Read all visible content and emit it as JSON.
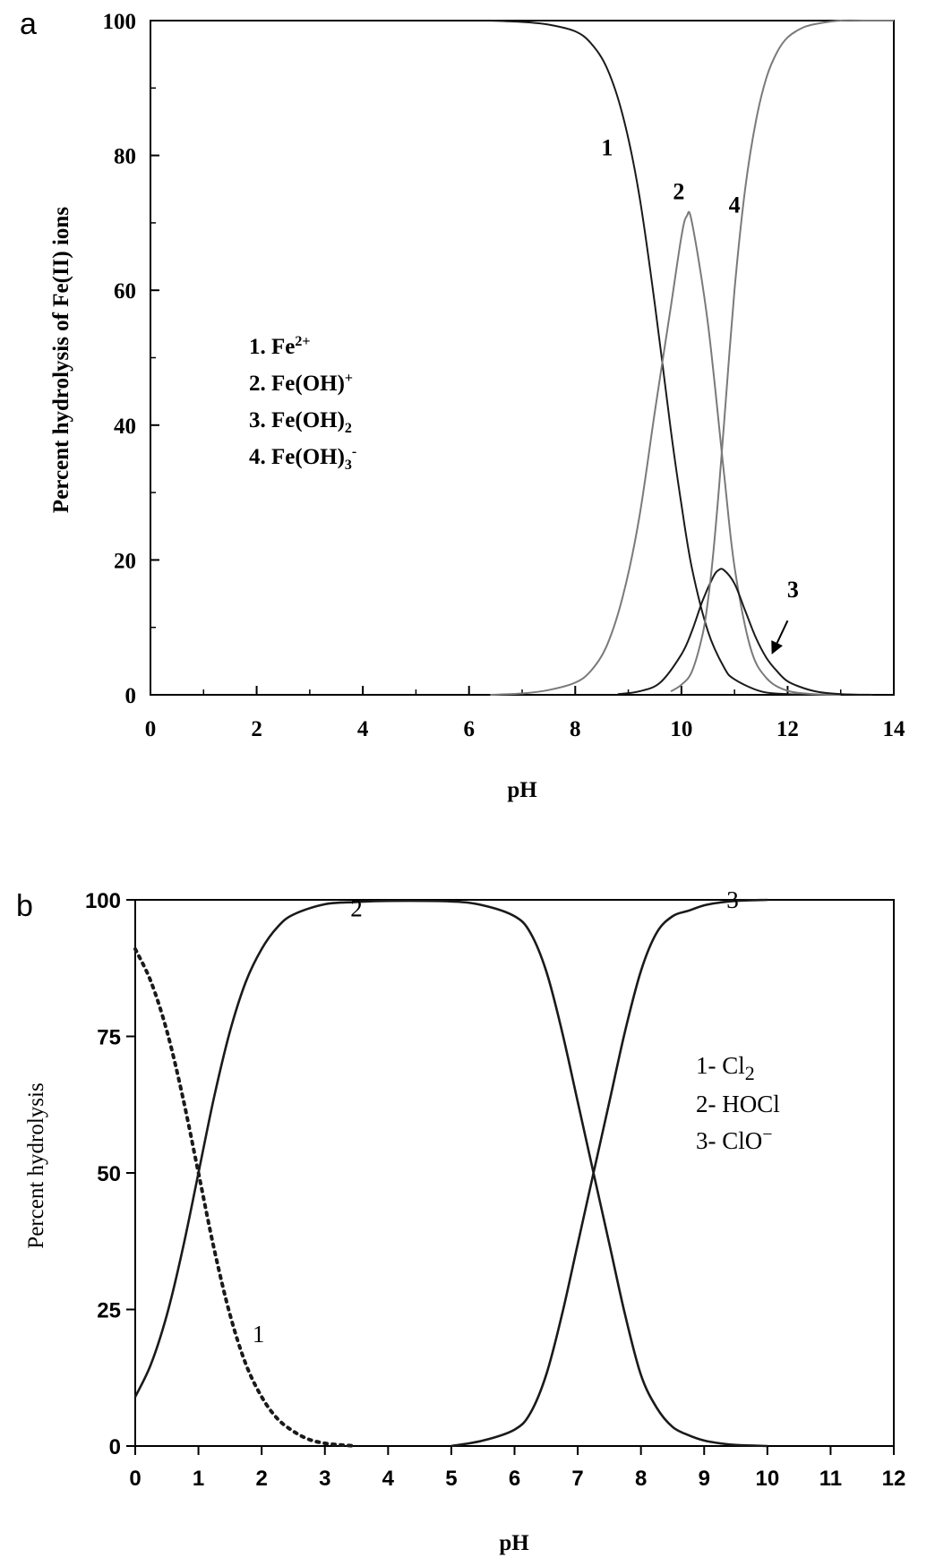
{
  "chart_data": [
    {
      "panel_label": "a",
      "type": "line",
      "xlabel": "pH",
      "ylabel": "Percent hydrolysis of Fe(II) ions",
      "xlim": [
        0,
        14
      ],
      "ylim": [
        0,
        100
      ],
      "xticks": [
        "0",
        "2",
        "4",
        "6",
        "8",
        "10",
        "12",
        "14"
      ],
      "yticks": [
        "0",
        "20",
        "40",
        "60",
        "80",
        "100"
      ],
      "grid": false,
      "legend_position": "center-left",
      "legend": [
        {
          "num": "1. ",
          "base": "Fe",
          "sub": "",
          "sup": "2+"
        },
        {
          "num": "2. ",
          "base": "Fe(OH)",
          "sub": "",
          "sup": "+"
        },
        {
          "num": "3. ",
          "base": "Fe(OH)",
          "sub": "2",
          "sup": ""
        },
        {
          "num": "4. ",
          "base": "Fe(OH)",
          "sub": "3",
          "sup": "-"
        }
      ],
      "series": [
        {
          "name": "1",
          "color": "#1a1a1a",
          "x": [
            6.4,
            7.0,
            7.5,
            8.0,
            8.3,
            8.6,
            8.9,
            9.2,
            9.5,
            9.8,
            10.0,
            10.2,
            10.5,
            10.8,
            11.0,
            11.5,
            12.0,
            12.5,
            13.0
          ],
          "y": [
            100,
            99.8,
            99.4,
            98.4,
            96.6,
            92.9,
            85.8,
            74.4,
            57.9,
            39.3,
            28.2,
            18.7,
            9.4,
            4.1,
            2.3,
            0.5,
            0.1,
            0.0,
            0.0
          ]
        },
        {
          "name": "2",
          "color": "#7a7a7a",
          "x": [
            6.4,
            7.0,
            7.5,
            8.0,
            8.3,
            8.6,
            8.9,
            9.2,
            9.5,
            9.8,
            10.0,
            10.1,
            10.2,
            10.5,
            10.8,
            11.0,
            11.3,
            11.6,
            12.0,
            12.5,
            13.0
          ],
          "y": [
            0.0,
            0.2,
            0.7,
            1.8,
            3.6,
            7.4,
            14.7,
            26.0,
            42.0,
            57.5,
            68.0,
            71.0,
            70.0,
            55.0,
            33.0,
            19.0,
            7.0,
            2.5,
            0.6,
            0.1,
            0.0
          ]
        },
        {
          "name": "3",
          "color": "#1a1a1a",
          "x": [
            8.8,
            9.2,
            9.6,
            10.0,
            10.2,
            10.4,
            10.6,
            10.7,
            10.8,
            11.0,
            11.2,
            11.4,
            11.6,
            11.8,
            12.0,
            12.3,
            12.6,
            13.0,
            13.6
          ],
          "y": [
            0.1,
            0.5,
            1.8,
            6.0,
            9.5,
            14.0,
            17.5,
            18.5,
            18.5,
            16.5,
            12.5,
            8.5,
            5.5,
            3.5,
            2.0,
            1.0,
            0.4,
            0.1,
            0.0
          ]
        },
        {
          "name": "4",
          "color": "#7a7a7a",
          "x": [
            9.8,
            10.0,
            10.2,
            10.4,
            10.5,
            10.6,
            10.7,
            10.8,
            11.0,
            11.2,
            11.4,
            11.6,
            11.8,
            12.0,
            12.3,
            12.6,
            13.0,
            13.5,
            14.0
          ],
          "y": [
            0.5,
            1.5,
            3.5,
            9.0,
            14.0,
            21.0,
            30.0,
            40.0,
            60.0,
            75.0,
            85.0,
            91.5,
            95.3,
            97.5,
            99.0,
            99.6,
            100,
            100,
            100
          ]
        }
      ],
      "curve_labels": [
        {
          "text": "1",
          "x": 8.6,
          "y": 80
        },
        {
          "text": "2",
          "x": 9.95,
          "y": 73.5
        },
        {
          "text": "4",
          "x": 11.0,
          "y": 71.5
        },
        {
          "text": "3",
          "x": 12.1,
          "y": 14.5
        }
      ],
      "arrow": {
        "from": [
          12.0,
          11.0
        ],
        "to": [
          11.7,
          6.0
        ]
      }
    },
    {
      "panel_label": "b",
      "type": "line",
      "xlabel": "pH",
      "ylabel": "Percent hydrolysis",
      "xlim": [
        0,
        12
      ],
      "ylim": [
        0,
        100
      ],
      "xticks": [
        "0",
        "1",
        "2",
        "3",
        "4",
        "5",
        "6",
        "7",
        "8",
        "9",
        "10",
        "11",
        "12"
      ],
      "yticks": [
        "0",
        "25",
        "50",
        "75",
        "100"
      ],
      "grid": false,
      "legend_position": "center-right",
      "legend": [
        {
          "num": "1- ",
          "base": "Cl",
          "sub": "2",
          "sup": ""
        },
        {
          "num": "2- ",
          "base": "HOCl",
          "sub": "",
          "sup": ""
        },
        {
          "num": "3- ",
          "base": "ClO",
          "sub": "",
          "sup": "−"
        }
      ],
      "series": [
        {
          "name": "1",
          "color": "#1a1a1a",
          "dashed": true,
          "x": [
            0,
            0.25,
            0.5,
            0.75,
            1.0,
            1.25,
            1.5,
            1.75,
            2.0,
            2.25,
            2.5,
            2.75,
            3.0,
            3.25,
            3.5
          ],
          "y": [
            91,
            85,
            76,
            64,
            50,
            36,
            24,
            15,
            9,
            5,
            2.7,
            1.2,
            0.5,
            0.2,
            0
          ]
        },
        {
          "name": "2",
          "color": "#1a1a1a",
          "x": [
            0,
            0.25,
            0.5,
            0.75,
            1.0,
            1.25,
            1.5,
            1.75,
            2.0,
            2.25,
            2.5,
            3.0,
            3.5,
            4.0,
            5.0,
            5.5,
            6.0,
            6.25,
            6.5,
            6.75,
            7.0,
            7.25,
            7.5,
            7.75,
            8.0,
            8.25,
            8.5,
            8.75,
            9.0,
            9.25,
            9.5,
            9.75,
            10.0
          ],
          "y": [
            9,
            15,
            24,
            36,
            50,
            64,
            76,
            85,
            91,
            95,
            97.3,
            99.2,
            99.6,
            99.8,
            99.7,
            99,
            97,
            94,
            87,
            76,
            63,
            50,
            37,
            24,
            13,
            7,
            3.5,
            2,
            1,
            0.5,
            0.2,
            0.1,
            0
          ]
        },
        {
          "name": "3",
          "color": "#1a1a1a",
          "x": [
            5.0,
            5.5,
            6.0,
            6.25,
            6.5,
            6.75,
            7.0,
            7.25,
            7.5,
            7.75,
            8.0,
            8.25,
            8.5,
            8.75,
            9.0,
            9.25,
            9.5,
            10.0
          ],
          "y": [
            0,
            1,
            3,
            6,
            13,
            24,
            37,
            50,
            63,
            76,
            87,
            94,
            97,
            98,
            99,
            99.5,
            99.8,
            100
          ]
        }
      ],
      "curve_labels": [
        {
          "text": "2",
          "x": 3.5,
          "y": 97
        },
        {
          "text": "3",
          "x": 9.45,
          "y": 98.5
        },
        {
          "text": "1",
          "x": 1.95,
          "y": 19
        }
      ]
    }
  ]
}
